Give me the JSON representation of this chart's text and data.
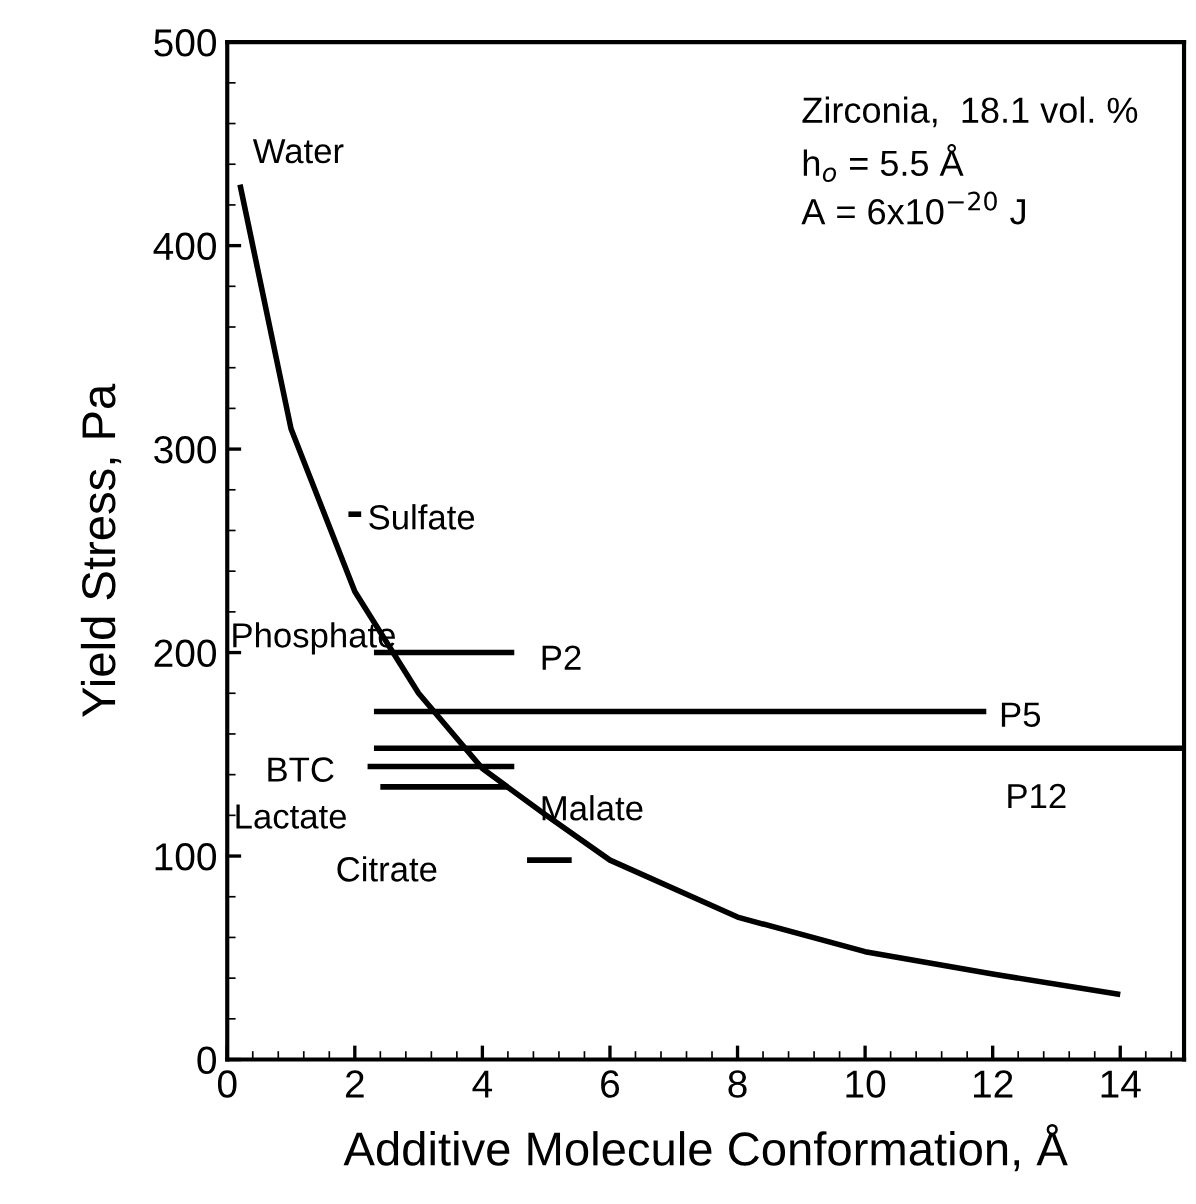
{
  "chart_data": {
    "type": "line",
    "xlabel": "Additive Molecule Conformation, Å",
    "ylabel": "Yield Stress, Pa",
    "xlim": [
      0,
      15
    ],
    "ylim": [
      0,
      500
    ],
    "xticks": [
      0,
      2,
      4,
      6,
      8,
      10,
      12,
      14
    ],
    "yticks": [
      0,
      100,
      200,
      300,
      400,
      500
    ],
    "grid": false,
    "legend": false,
    "marker": "none",
    "line_style": "solid",
    "series": [
      {
        "color": "#000000",
        "x": [
          0.2,
          1,
          2,
          3,
          4,
          5,
          6,
          8,
          10,
          12,
          14
        ],
        "values": [
          430,
          310,
          230,
          180,
          143,
          120,
          98,
          70,
          53,
          42,
          32
        ]
      },
      {
        "color": "#000000",
        "x": [
          1.9,
          2.1
        ],
        "values": [
          268,
          268
        ]
      },
      {
        "color": "#000000",
        "x": [
          2.3,
          4.5
        ],
        "values": [
          200,
          200
        ]
      },
      {
        "color": "#000000",
        "x": [
          2.3,
          11.9
        ],
        "values": [
          171,
          171
        ]
      },
      {
        "color": "#000000",
        "x": [
          2.3,
          15
        ],
        "values": [
          153,
          153
        ]
      },
      {
        "color": "#000000",
        "x": [
          2.2,
          4.5
        ],
        "values": [
          144,
          144
        ]
      },
      {
        "color": "#000000",
        "x": [
          2.4,
          4.4
        ],
        "values": [
          134,
          134
        ]
      },
      {
        "color": "#000000",
        "x": [
          4.7,
          5.4
        ],
        "values": [
          98,
          98
        ]
      }
    ],
    "annotations": [
      "Water",
      "Sulfate",
      "Phosphate",
      "P2",
      "P5",
      "P12",
      "BTC",
      "Lactate",
      "Malate",
      "Citrate",
      "Zirconia,  18.1 vol. %",
      "h$_{o}$ = 5.5 Å",
      "A = 6x10$^{−20}$ J"
    ]
  }
}
